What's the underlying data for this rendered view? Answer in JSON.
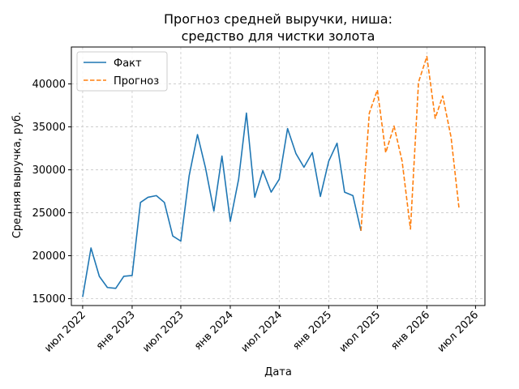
{
  "chart_data": {
    "type": "line",
    "title": [
      "Прогноз средней выручки, ниша:",
      "средство для чистки золота"
    ],
    "xlabel": "Дата",
    "ylabel": "Средняя выручка, руб.",
    "grid": true,
    "legend_position": "top-left",
    "ylim": [
      14200,
      44300
    ],
    "yticks": [
      15000,
      20000,
      25000,
      30000,
      35000,
      40000
    ],
    "xlim": [
      "2022-05-20",
      "2026-08-05"
    ],
    "xticks": [
      {
        "date": "2022-07-01",
        "label": "июл 2022"
      },
      {
        "date": "2023-01-01",
        "label": "янв 2023"
      },
      {
        "date": "2023-07-01",
        "label": "июл 2023"
      },
      {
        "date": "2024-01-01",
        "label": "янв 2024"
      },
      {
        "date": "2024-07-01",
        "label": "июл 2024"
      },
      {
        "date": "2025-01-01",
        "label": "янв 2025"
      },
      {
        "date": "2025-07-01",
        "label": "июл 2025"
      },
      {
        "date": "2026-01-01",
        "label": "янв 2026"
      },
      {
        "date": "2026-07-01",
        "label": "июл 2026"
      }
    ],
    "series": [
      {
        "name": "Факт",
        "color": "#1f77b4",
        "style": "solid",
        "x": [
          "2022-07-01",
          "2022-08-01",
          "2022-09-01",
          "2022-10-01",
          "2022-11-01",
          "2022-12-01",
          "2023-01-01",
          "2023-02-01",
          "2023-03-01",
          "2023-04-01",
          "2023-05-01",
          "2023-06-01",
          "2023-07-01",
          "2023-08-01",
          "2023-09-01",
          "2023-10-01",
          "2023-11-01",
          "2023-12-01",
          "2024-01-01",
          "2024-02-01",
          "2024-03-01",
          "2024-04-01",
          "2024-05-01",
          "2024-06-01",
          "2024-07-01",
          "2024-08-01",
          "2024-09-01",
          "2024-10-01",
          "2024-11-01",
          "2024-12-01",
          "2025-01-01",
          "2025-02-01",
          "2025-03-01",
          "2025-04-01",
          "2025-05-01"
        ],
        "values": [
          15200,
          20900,
          17600,
          16300,
          16200,
          17600,
          17700,
          26200,
          26800,
          27000,
          26200,
          22300,
          21700,
          29300,
          34100,
          30200,
          25200,
          31600,
          24000,
          28900,
          36600,
          26800,
          29900,
          27400,
          28900,
          34800,
          31900,
          30300,
          32000,
          26900,
          31000,
          33100,
          27400,
          27000,
          22900
        ]
      },
      {
        "name": "Прогноз",
        "color": "#ff7f0e",
        "style": "dashed",
        "x": [
          "2025-05-01",
          "2025-06-01",
          "2025-07-01",
          "2025-08-01",
          "2025-09-01",
          "2025-10-01",
          "2025-11-01",
          "2025-12-01",
          "2026-01-01",
          "2026-02-01",
          "2026-03-01",
          "2026-04-01",
          "2026-05-01"
        ],
        "values": [
          22900,
          36600,
          39300,
          32000,
          35100,
          31000,
          23100,
          40200,
          43200,
          36000,
          38600,
          33800,
          25400
        ]
      }
    ]
  }
}
